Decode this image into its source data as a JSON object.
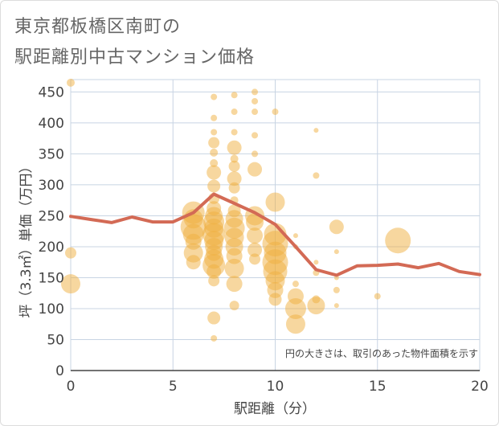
{
  "title_line1": "東京都板橋区南町の",
  "title_line2": "駅距離別中古マンション価格",
  "chart_data": {
    "type": "scatter",
    "xlabel": "駅距離（分）",
    "ylabel": "坪（3.3㎡）単価（万円）",
    "xlim": [
      0,
      20
    ],
    "ylim": [
      0,
      470
    ],
    "xticks": [
      0,
      5,
      10,
      15,
      20
    ],
    "yticks": [
      0,
      50,
      100,
      150,
      200,
      250,
      300,
      350,
      400,
      450
    ],
    "grid": true,
    "note": "円の大きさは、取引のあった物件面積を示す",
    "points": [
      {
        "x": 0,
        "y": 465,
        "s": 5
      },
      {
        "x": 0,
        "y": 190,
        "s": 7
      },
      {
        "x": 0,
        "y": 140,
        "s": 12
      },
      {
        "x": 6,
        "y": 255,
        "s": 14
      },
      {
        "x": 6,
        "y": 245,
        "s": 12
      },
      {
        "x": 6,
        "y": 232,
        "s": 16
      },
      {
        "x": 6,
        "y": 220,
        "s": 13
      },
      {
        "x": 6,
        "y": 208,
        "s": 10
      },
      {
        "x": 6,
        "y": 190,
        "s": 12
      },
      {
        "x": 6,
        "y": 175,
        "s": 9
      },
      {
        "x": 7,
        "y": 442,
        "s": 4
      },
      {
        "x": 7,
        "y": 408,
        "s": 4
      },
      {
        "x": 7,
        "y": 385,
        "s": 4
      },
      {
        "x": 7,
        "y": 368,
        "s": 7
      },
      {
        "x": 7,
        "y": 352,
        "s": 5
      },
      {
        "x": 7,
        "y": 335,
        "s": 5
      },
      {
        "x": 7,
        "y": 320,
        "s": 9
      },
      {
        "x": 7,
        "y": 298,
        "s": 8
      },
      {
        "x": 7,
        "y": 278,
        "s": 7
      },
      {
        "x": 7,
        "y": 262,
        "s": 9
      },
      {
        "x": 7,
        "y": 250,
        "s": 11
      },
      {
        "x": 7,
        "y": 240,
        "s": 13
      },
      {
        "x": 7,
        "y": 230,
        "s": 12
      },
      {
        "x": 7,
        "y": 220,
        "s": 14
      },
      {
        "x": 7,
        "y": 210,
        "s": 12
      },
      {
        "x": 7,
        "y": 200,
        "s": 11
      },
      {
        "x": 7,
        "y": 190,
        "s": 10
      },
      {
        "x": 7,
        "y": 180,
        "s": 12
      },
      {
        "x": 7,
        "y": 170,
        "s": 14
      },
      {
        "x": 7,
        "y": 160,
        "s": 9
      },
      {
        "x": 7,
        "y": 145,
        "s": 7
      },
      {
        "x": 7,
        "y": 85,
        "s": 8
      },
      {
        "x": 7,
        "y": 52,
        "s": 4
      },
      {
        "x": 8,
        "y": 445,
        "s": 4
      },
      {
        "x": 8,
        "y": 418,
        "s": 4
      },
      {
        "x": 8,
        "y": 385,
        "s": 4
      },
      {
        "x": 8,
        "y": 360,
        "s": 9
      },
      {
        "x": 8,
        "y": 342,
        "s": 5
      },
      {
        "x": 8,
        "y": 330,
        "s": 7
      },
      {
        "x": 8,
        "y": 310,
        "s": 9
      },
      {
        "x": 8,
        "y": 295,
        "s": 7
      },
      {
        "x": 8,
        "y": 275,
        "s": 5
      },
      {
        "x": 8,
        "y": 258,
        "s": 8
      },
      {
        "x": 8,
        "y": 245,
        "s": 11
      },
      {
        "x": 8,
        "y": 230,
        "s": 13
      },
      {
        "x": 8,
        "y": 215,
        "s": 12
      },
      {
        "x": 8,
        "y": 200,
        "s": 11
      },
      {
        "x": 8,
        "y": 185,
        "s": 10
      },
      {
        "x": 8,
        "y": 165,
        "s": 12
      },
      {
        "x": 8,
        "y": 140,
        "s": 10
      },
      {
        "x": 8,
        "y": 105,
        "s": 6
      },
      {
        "x": 9,
        "y": 450,
        "s": 4
      },
      {
        "x": 9,
        "y": 435,
        "s": 4
      },
      {
        "x": 9,
        "y": 418,
        "s": 4
      },
      {
        "x": 9,
        "y": 380,
        "s": 4
      },
      {
        "x": 9,
        "y": 350,
        "s": 4
      },
      {
        "x": 9,
        "y": 325,
        "s": 9
      },
      {
        "x": 9,
        "y": 250,
        "s": 12
      },
      {
        "x": 9,
        "y": 240,
        "s": 11
      },
      {
        "x": 9,
        "y": 218,
        "s": 10
      },
      {
        "x": 9,
        "y": 195,
        "s": 9
      },
      {
        "x": 9,
        "y": 180,
        "s": 7
      },
      {
        "x": 10,
        "y": 418,
        "s": 4
      },
      {
        "x": 10,
        "y": 272,
        "s": 12
      },
      {
        "x": 10,
        "y": 220,
        "s": 14
      },
      {
        "x": 10,
        "y": 205,
        "s": 16
      },
      {
        "x": 10,
        "y": 190,
        "s": 14
      },
      {
        "x": 10,
        "y": 175,
        "s": 16
      },
      {
        "x": 10,
        "y": 160,
        "s": 15
      },
      {
        "x": 10,
        "y": 145,
        "s": 12
      },
      {
        "x": 10,
        "y": 130,
        "s": 10
      },
      {
        "x": 10,
        "y": 115,
        "s": 8
      },
      {
        "x": 11,
        "y": 218,
        "s": 3
      },
      {
        "x": 11,
        "y": 200,
        "s": 3
      },
      {
        "x": 11,
        "y": 140,
        "s": 4
      },
      {
        "x": 11,
        "y": 120,
        "s": 10
      },
      {
        "x": 11,
        "y": 100,
        "s": 13
      },
      {
        "x": 11,
        "y": 75,
        "s": 12
      },
      {
        "x": 12,
        "y": 388,
        "s": 3
      },
      {
        "x": 12,
        "y": 315,
        "s": 4
      },
      {
        "x": 12,
        "y": 175,
        "s": 3
      },
      {
        "x": 12,
        "y": 158,
        "s": 4
      },
      {
        "x": 12,
        "y": 115,
        "s": 5
      },
      {
        "x": 12,
        "y": 105,
        "s": 11
      },
      {
        "x": 13,
        "y": 232,
        "s": 9
      },
      {
        "x": 13,
        "y": 192,
        "s": 3
      },
      {
        "x": 13,
        "y": 150,
        "s": 3
      },
      {
        "x": 13,
        "y": 130,
        "s": 4
      },
      {
        "x": 13,
        "y": 105,
        "s": 3
      },
      {
        "x": 15,
        "y": 120,
        "s": 4
      },
      {
        "x": 16,
        "y": 210,
        "s": 16
      }
    ],
    "series": [
      {
        "x": [
          0,
          1,
          2,
          3,
          4,
          5,
          6,
          7,
          8,
          9,
          10,
          11,
          12,
          13,
          14,
          15,
          16,
          17,
          18,
          19,
          20
        ],
        "values": [
          249,
          244,
          239,
          248,
          240,
          240,
          255,
          285,
          270,
          255,
          236,
          200,
          163,
          154,
          169,
          170,
          172,
          166,
          173,
          160,
          155
        ]
      }
    ],
    "colors": {
      "bubble": "#f0b040",
      "line": "#d36a55",
      "grid": "#c8d4e3"
    }
  }
}
